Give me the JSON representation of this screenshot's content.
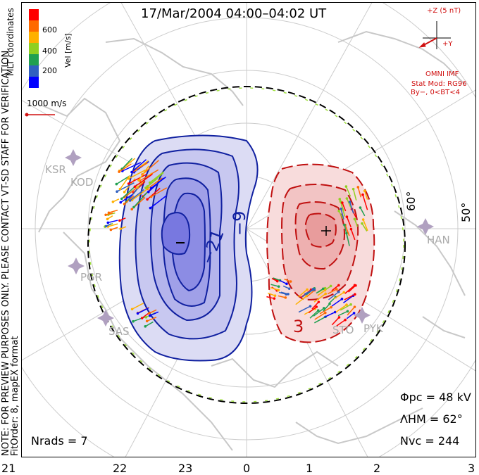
{
  "title": "17/Mar/2004 04:00–04:02 UT",
  "side_note": {
    "line1": "NOTE: FOR PREVIEW PURPOSES ONLY. PLEASE CONTACT VT-SD STAFF FOR VERIFICATION.",
    "line2": "FitOrder: 8, mapEX format"
  },
  "coord_label": "MLT coordinates",
  "colorbar": {
    "label": "Vel [m/s]",
    "ticks": [
      "600",
      "400",
      "200"
    ],
    "colors": [
      "#ff0000",
      "#ff6a00",
      "#ffb000",
      "#90d020",
      "#20a050",
      "#3060c0",
      "#0000ff"
    ]
  },
  "scale_vector": "1000 m/s",
  "mlt_labels": [
    "21",
    "22",
    "23",
    "0",
    "1",
    "2",
    "3"
  ],
  "lat_labels": [
    "60°",
    "50°"
  ],
  "stations": [
    "KSR",
    "KOD",
    "PGR",
    "SAS",
    "HAN",
    "STO",
    "PYK"
  ],
  "contour_labels": {
    "neg1": "−21",
    "neg2": "−9",
    "pos": "3"
  },
  "cells": {
    "min_marker": "−",
    "max_marker": "+"
  },
  "imf": {
    "scale": "+Z (5 nT)",
    "y_axis": "+Y",
    "source": "OMNI IMF",
    "model": "Stat Mod: RG96",
    "condition": "By−, 0<BT<4"
  },
  "stats": {
    "phi_pc": "Φpc = 48 kV",
    "lambda_hm": "ΛHM = 62°",
    "n_vc": "Nvc = 244",
    "n_rads": "Nrads = 7"
  }
}
